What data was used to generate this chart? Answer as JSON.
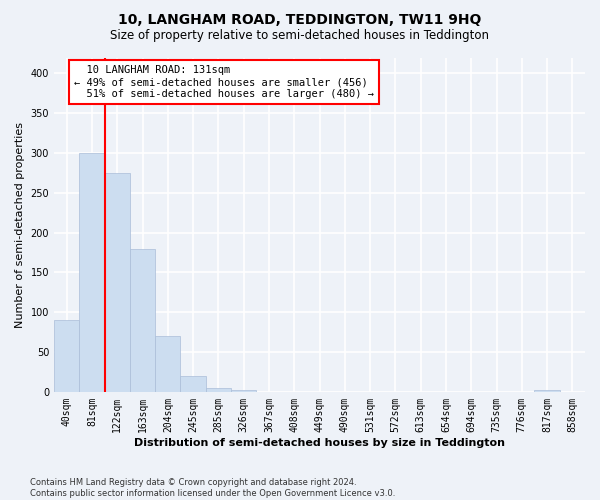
{
  "title": "10, LANGHAM ROAD, TEDDINGTON, TW11 9HQ",
  "subtitle": "Size of property relative to semi-detached houses in Teddington",
  "xlabel": "Distribution of semi-detached houses by size in Teddington",
  "ylabel": "Number of semi-detached properties",
  "bin_labels": [
    "40sqm",
    "81sqm",
    "122sqm",
    "163sqm",
    "204sqm",
    "245sqm",
    "285sqm",
    "326sqm",
    "367sqm",
    "408sqm",
    "449sqm",
    "490sqm",
    "531sqm",
    "572sqm",
    "613sqm",
    "654sqm",
    "694sqm",
    "735sqm",
    "776sqm",
    "817sqm",
    "858sqm"
  ],
  "bar_values": [
    90,
    300,
    275,
    180,
    70,
    20,
    5,
    2,
    0,
    0,
    0,
    0,
    0,
    0,
    0,
    0,
    0,
    0,
    0,
    2,
    0
  ],
  "bar_color": "#ccddf0",
  "bar_edgecolor": "#aabdd8",
  "property_label": "10 LANGHAM ROAD: 131sqm",
  "pct_smaller": 49,
  "count_smaller": 456,
  "pct_larger": 51,
  "count_larger": 480,
  "vline_bin_index": 2,
  "ylim": [
    0,
    420
  ],
  "yticks": [
    0,
    50,
    100,
    150,
    200,
    250,
    300,
    350,
    400
  ],
  "footer_line1": "Contains HM Land Registry data © Crown copyright and database right 2024.",
  "footer_line2": "Contains public sector information licensed under the Open Government Licence v3.0.",
  "background_color": "#eef2f8",
  "grid_color": "#ffffff",
  "title_fontsize": 10,
  "subtitle_fontsize": 8.5,
  "axis_label_fontsize": 8,
  "tick_fontsize": 7,
  "footer_fontsize": 6,
  "annotation_fontsize": 7.5
}
